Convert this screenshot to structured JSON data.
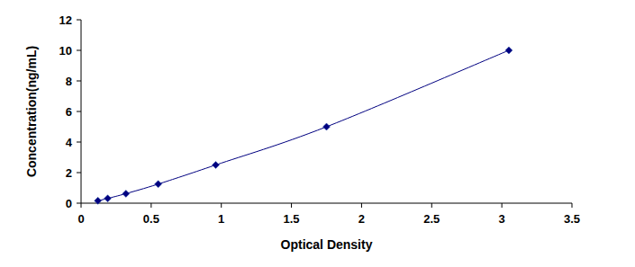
{
  "chart_data": {
    "type": "line",
    "x_label": "Optical Density",
    "y_label": "Concentration(ng/mL)",
    "x": [
      0.12,
      0.19,
      0.32,
      0.55,
      0.96,
      1.75,
      3.05
    ],
    "values": [
      0.156,
      0.312,
      0.625,
      1.25,
      2.5,
      5,
      10
    ],
    "color": "#000080",
    "marker": "diamond",
    "xlim": [
      0,
      3.5
    ],
    "xticks": [
      0,
      0.5,
      1,
      1.5,
      2,
      2.5,
      3,
      3.5
    ],
    "ylim": [
      0,
      12
    ],
    "yticks": [
      0,
      2,
      4,
      6,
      8,
      10,
      12
    ],
    "grid": false
  }
}
